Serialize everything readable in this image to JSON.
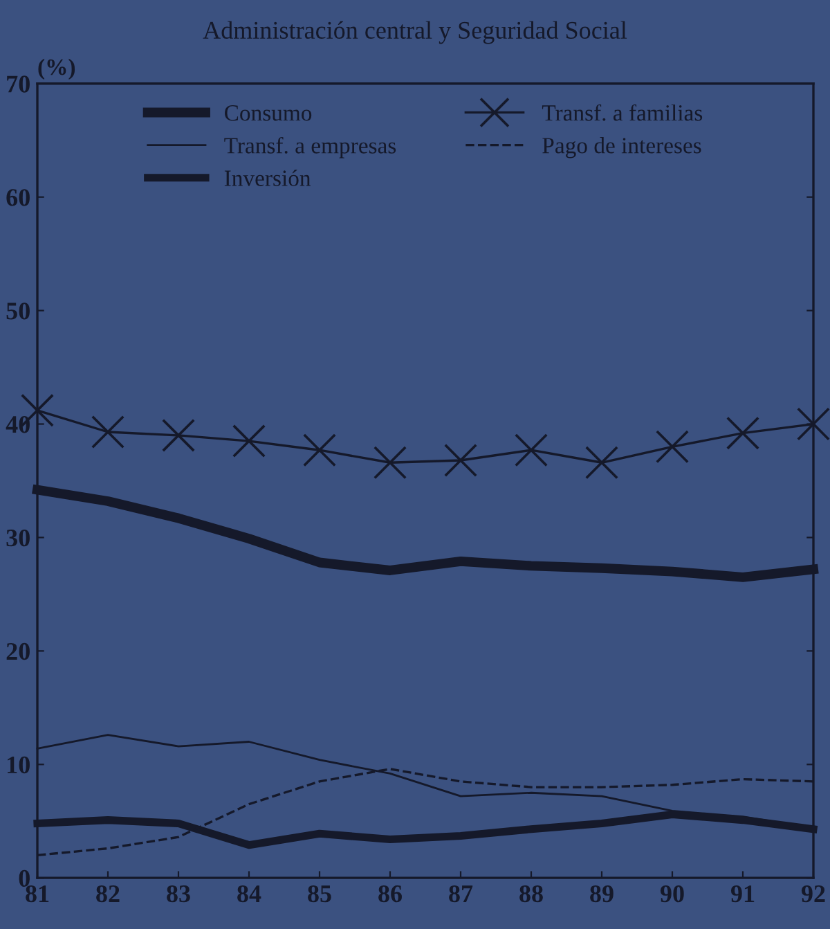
{
  "chart_data": {
    "type": "line",
    "title": "Administración central y Seguridad Social",
    "ylabel": "(%)",
    "categories": [
      "81",
      "82",
      "83",
      "84",
      "85",
      "86",
      "87",
      "88",
      "89",
      "90",
      "91",
      "92"
    ],
    "ylim": [
      0,
      70
    ],
    "yticks": [
      0,
      10,
      20,
      30,
      40,
      50,
      60,
      70
    ],
    "grid": false,
    "legend": "top",
    "series": [
      {
        "name": "Consumo",
        "color": "#15192a",
        "marker": "none",
        "line_style": "solid",
        "values": [
          34.2,
          33.2,
          31.7,
          29.9,
          27.8,
          27.1,
          27.9,
          27.5,
          27.3,
          27.0,
          26.5,
          27.2
        ]
      },
      {
        "name": "Transf. a empresas",
        "color": "#15192a",
        "marker": "none",
        "line_style": "solid",
        "values": [
          11.4,
          12.6,
          11.6,
          12.0,
          10.4,
          9.2,
          7.2,
          7.5,
          7.2,
          5.9,
          5.4,
          4.4
        ]
      },
      {
        "name": "Inversión",
        "color": "#15192a",
        "marker": "none",
        "line_style": "solid",
        "values": [
          4.8,
          5.1,
          4.8,
          2.9,
          3.9,
          3.4,
          3.7,
          4.3,
          4.8,
          5.6,
          5.1,
          4.3
        ]
      },
      {
        "name": "Transf. a familias",
        "color": "#15192a",
        "marker": "cross",
        "line_style": "solid",
        "values": [
          41.2,
          39.3,
          39.0,
          38.5,
          37.7,
          36.6,
          36.8,
          37.7,
          36.6,
          38.0,
          39.2,
          40.0
        ]
      },
      {
        "name": "Pago de intereses",
        "color": "#15192a",
        "marker": "none",
        "line_style": "dashed",
        "values": [
          2.0,
          2.6,
          3.6,
          6.5,
          8.5,
          9.6,
          8.5,
          8.0,
          8.0,
          8.2,
          8.7,
          8.5
        ]
      }
    ]
  }
}
